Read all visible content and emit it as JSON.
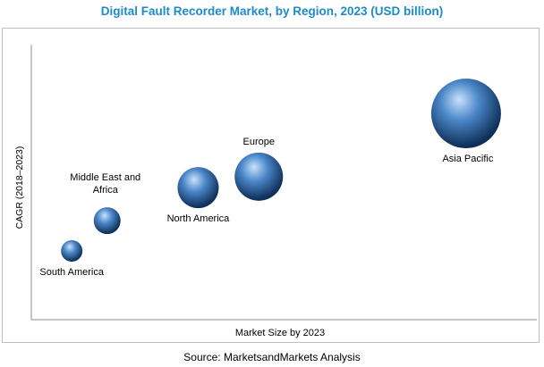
{
  "title": "Digital Fault Recorder Market, by Region, 2023 (USD billion)",
  "source": "Source: MarketsandMarkets Analysis",
  "colors": {
    "title": "#1f8ac8",
    "bubble_light": "#c9e2fb",
    "bubble_mid": "#4a86c8",
    "bubble_dark": "#0f2f57"
  },
  "chart_data": {
    "type": "scatter",
    "title": "Digital Fault Recorder Market, by Region, 2023 (USD billion)",
    "xlabel": "Market Size by 2023",
    "ylabel": "CAGR (2018–2023)",
    "xlim": [
      0,
      100
    ],
    "ylim": [
      0,
      100
    ],
    "grid": false,
    "legend": "none",
    "points": [
      {
        "label": "South America",
        "x": 8,
        "y": 25,
        "size": 12
      },
      {
        "label": "Middle East and Africa",
        "x": 15,
        "y": 36,
        "size": 15
      },
      {
        "label": "North America",
        "x": 33,
        "y": 48,
        "size": 23
      },
      {
        "label": "Europe",
        "x": 45,
        "y": 52,
        "size": 27
      },
      {
        "label": "Asia Pacific",
        "x": 86,
        "y": 75,
        "size": 39
      }
    ]
  }
}
